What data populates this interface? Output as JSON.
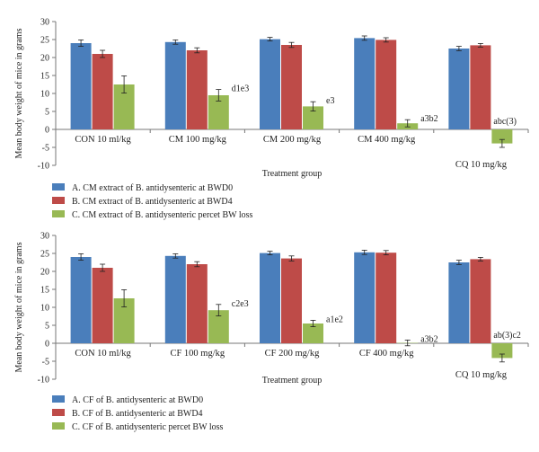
{
  "colors": {
    "A": "#4a7ebb",
    "B": "#be4b48",
    "C": "#98b954"
  },
  "chart_data": [
    {
      "type": "bar",
      "title": "",
      "xlabel": "Treatment group",
      "ylabel": "Mean body weight of mice in grams",
      "ylim": [
        -10,
        30
      ],
      "yticks": [
        -10,
        -5,
        0,
        5,
        10,
        15,
        20,
        25,
        30
      ],
      "grid": false,
      "legend_position": "bottom-left",
      "categories": [
        "CON 10 ml/kg",
        "CM 100 mg/kg",
        "CM 200 mg/kg",
        "CM 400 mg/kg",
        "CQ 10 mg/kg"
      ],
      "series": [
        {
          "name": "A. CM extract of B. antidysenteric at BWD0",
          "color": "#4a7ebb",
          "values": [
            24.0,
            24.3,
            25.1,
            25.4,
            22.5
          ],
          "errors": [
            0.9,
            0.6,
            0.5,
            0.6,
            0.6
          ]
        },
        {
          "name": "B. CM extract of B. antidysenteric at BWD4",
          "color": "#be4b48",
          "values": [
            21.0,
            22.0,
            23.5,
            24.9,
            23.4
          ],
          "errors": [
            1.0,
            0.7,
            0.7,
            0.6,
            0.5
          ]
        },
        {
          "name": "C. CM extract of B. antidysenteric percet BW loss",
          "color": "#98b954",
          "values": [
            12.5,
            9.5,
            6.4,
            1.7,
            -3.9
          ],
          "errors": [
            2.4,
            1.6,
            1.3,
            1.0,
            1.1
          ],
          "labels": [
            "",
            "d1e3",
            "e3",
            "a3b2",
            "abc(3)"
          ]
        }
      ]
    },
    {
      "type": "bar",
      "title": "",
      "xlabel": "Treatment group",
      "ylabel": "Mean body weight of mice in grams",
      "ylim": [
        -10,
        30
      ],
      "yticks": [
        -10,
        -5,
        0,
        5,
        10,
        15,
        20,
        25,
        30
      ],
      "grid": false,
      "legend_position": "bottom-left",
      "categories": [
        "CON 10 ml/kg",
        "CF 100 mg/kg",
        "CF 200 mg/kg",
        "CF 400 mg/kg",
        "CQ 10 mg/kg"
      ],
      "series": [
        {
          "name": "A. CF of B. antidysenteric at BWD0",
          "color": "#4a7ebb",
          "values": [
            24.0,
            24.3,
            25.1,
            25.3,
            22.5
          ],
          "errors": [
            0.9,
            0.6,
            0.5,
            0.6,
            0.6
          ]
        },
        {
          "name": "B. CF of B. antidysenteric at BWD4",
          "color": "#be4b48",
          "values": [
            21.0,
            22.0,
            23.6,
            25.2,
            23.4
          ],
          "errors": [
            1.0,
            0.7,
            0.7,
            0.6,
            0.5
          ]
        },
        {
          "name": "C. CF of B. antidysenteric percet BW loss",
          "color": "#98b954",
          "values": [
            12.5,
            9.2,
            5.5,
            0.1,
            -4.1
          ],
          "errors": [
            2.4,
            1.6,
            0.9,
            0.8,
            1.1
          ],
          "labels": [
            "",
            "c2e3",
            "a1e2",
            "a3b2",
            "ab(3)c2"
          ]
        }
      ]
    }
  ]
}
